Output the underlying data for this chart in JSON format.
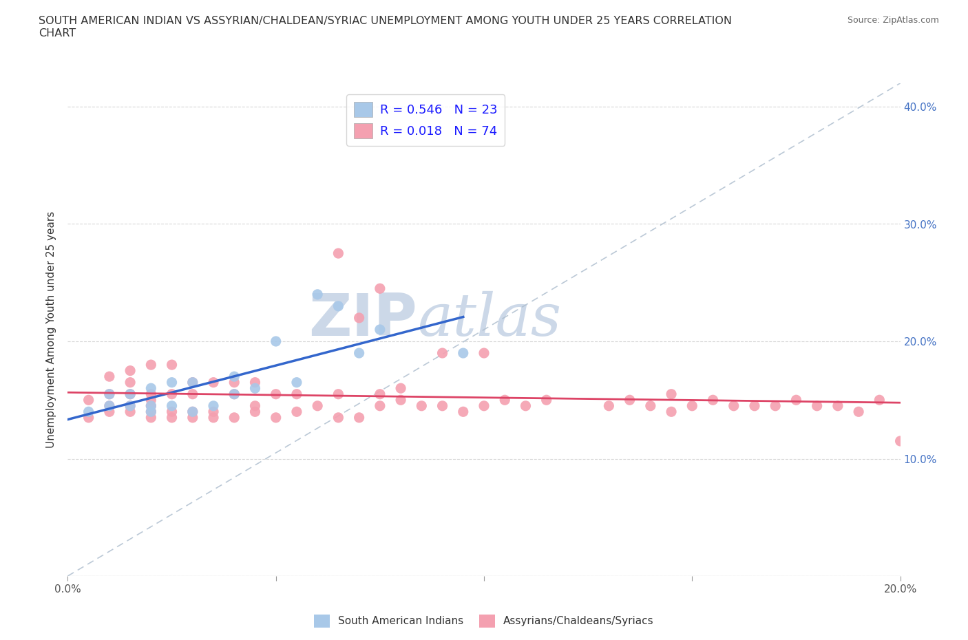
{
  "title": "SOUTH AMERICAN INDIAN VS ASSYRIAN/CHALDEAN/SYRIAC UNEMPLOYMENT AMONG YOUTH UNDER 25 YEARS CORRELATION\nCHART",
  "source_text": "Source: ZipAtlas.com",
  "ylabel": "Unemployment Among Youth under 25 years",
  "xlim": [
    0.0,
    0.2
  ],
  "ylim": [
    0.0,
    0.42
  ],
  "xticks": [
    0.0,
    0.05,
    0.1,
    0.15,
    0.2
  ],
  "xtick_labels": [
    "0.0%",
    "",
    "",
    "",
    "20.0%"
  ],
  "yticks": [
    0.0,
    0.1,
    0.2,
    0.3,
    0.4
  ],
  "ytick_labels_right": [
    "",
    "10.0%",
    "20.0%",
    "30.0%",
    "40.0%"
  ],
  "legend1_label": "R = 0.546   N = 23",
  "legend2_label": "R = 0.018   N = 74",
  "group1_name": "South American Indians",
  "group2_name": "Assyrians/Chaldeans/Syriacs",
  "group1_color": "#a8c8e8",
  "group2_color": "#f4a0b0",
  "group1_line_color": "#3366cc",
  "group2_line_color": "#dd4466",
  "diagonal_color": "#aabbcc",
  "background_color": "#ffffff",
  "watermark_color": "#ccd8e8",
  "r1": 0.546,
  "n1": 23,
  "r2": 0.018,
  "n2": 74,
  "blue_x": [
    0.005,
    0.01,
    0.01,
    0.015,
    0.015,
    0.02,
    0.02,
    0.02,
    0.025,
    0.025,
    0.03,
    0.03,
    0.035,
    0.04,
    0.04,
    0.045,
    0.05,
    0.055,
    0.06,
    0.065,
    0.07,
    0.075,
    0.095
  ],
  "blue_y": [
    0.14,
    0.145,
    0.155,
    0.145,
    0.155,
    0.14,
    0.145,
    0.16,
    0.145,
    0.165,
    0.14,
    0.165,
    0.145,
    0.155,
    0.17,
    0.16,
    0.2,
    0.165,
    0.24,
    0.23,
    0.19,
    0.21,
    0.19
  ],
  "pink_x": [
    0.005,
    0.005,
    0.01,
    0.01,
    0.01,
    0.01,
    0.015,
    0.015,
    0.015,
    0.015,
    0.015,
    0.02,
    0.02,
    0.02,
    0.02,
    0.02,
    0.02,
    0.025,
    0.025,
    0.025,
    0.025,
    0.03,
    0.03,
    0.03,
    0.03,
    0.035,
    0.035,
    0.035,
    0.04,
    0.04,
    0.04,
    0.045,
    0.045,
    0.045,
    0.05,
    0.05,
    0.055,
    0.055,
    0.06,
    0.065,
    0.065,
    0.07,
    0.075,
    0.075,
    0.08,
    0.085,
    0.09,
    0.095,
    0.1,
    0.105,
    0.11,
    0.115,
    0.13,
    0.135,
    0.14,
    0.145,
    0.145,
    0.15,
    0.155,
    0.16,
    0.165,
    0.17,
    0.175,
    0.18,
    0.185,
    0.19,
    0.195,
    0.2,
    0.065,
    0.07,
    0.075,
    0.08,
    0.09,
    0.1
  ],
  "pink_y": [
    0.135,
    0.15,
    0.14,
    0.145,
    0.155,
    0.17,
    0.14,
    0.145,
    0.155,
    0.165,
    0.175,
    0.135,
    0.14,
    0.145,
    0.15,
    0.155,
    0.18,
    0.135,
    0.14,
    0.155,
    0.18,
    0.135,
    0.14,
    0.155,
    0.165,
    0.135,
    0.14,
    0.165,
    0.135,
    0.155,
    0.165,
    0.14,
    0.145,
    0.165,
    0.135,
    0.155,
    0.14,
    0.155,
    0.145,
    0.135,
    0.155,
    0.135,
    0.145,
    0.155,
    0.15,
    0.145,
    0.145,
    0.14,
    0.145,
    0.15,
    0.145,
    0.15,
    0.145,
    0.15,
    0.145,
    0.14,
    0.155,
    0.145,
    0.15,
    0.145,
    0.145,
    0.145,
    0.15,
    0.145,
    0.145,
    0.14,
    0.15,
    0.115,
    0.275,
    0.22,
    0.245,
    0.16,
    0.19,
    0.19
  ]
}
